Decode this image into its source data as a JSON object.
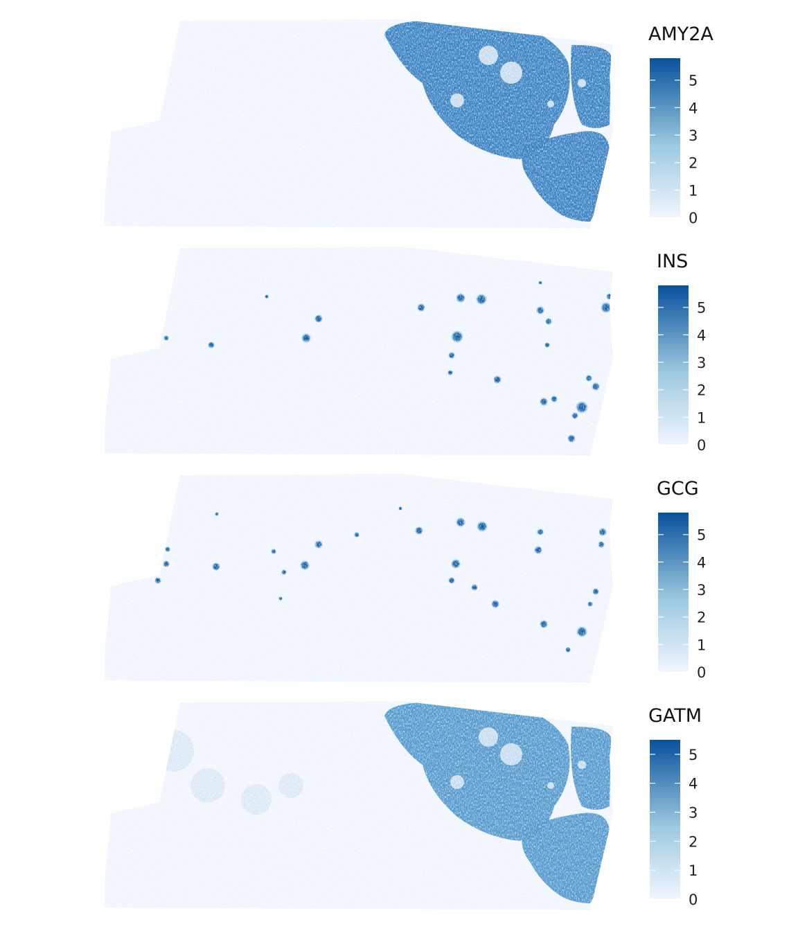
{
  "chart_data": [
    {
      "type": "heatmap",
      "gene": "AMY2A",
      "legend": {
        "title": "AMY2A",
        "ticks": [
          "0",
          "1",
          "2",
          "3",
          "4",
          "5"
        ],
        "range": [
          0,
          5.8
        ]
      },
      "pattern": "acinar",
      "colors": {
        "low": "#f0f5fd",
        "mid": "#9ecae1",
        "high": "#08519c"
      }
    },
    {
      "type": "heatmap",
      "gene": "INS",
      "legend": {
        "title": "INS",
        "ticks": [
          "0",
          "1",
          "2",
          "3",
          "4",
          "5"
        ],
        "range": [
          0,
          5.8
        ]
      },
      "pattern": "islets",
      "colors": {
        "low": "#f0f5fd",
        "mid": "#9ecae1",
        "high": "#08519c"
      }
    },
    {
      "type": "heatmap",
      "gene": "GCG",
      "legend": {
        "title": "GCG",
        "ticks": [
          "0",
          "1",
          "2",
          "3",
          "4",
          "5"
        ],
        "range": [
          0,
          5.8
        ]
      },
      "pattern": "islets",
      "colors": {
        "low": "#f0f5fd",
        "mid": "#9ecae1",
        "high": "#08519c"
      }
    },
    {
      "type": "heatmap",
      "gene": "GATM",
      "legend": {
        "title": "GATM",
        "ticks": [
          "0",
          "1",
          "2",
          "3",
          "4",
          "5"
        ],
        "range": [
          0,
          5.5
        ]
      },
      "pattern": "acinar-light",
      "colors": {
        "low": "#f0f5fd",
        "mid": "#9ecae1",
        "high": "#08519c"
      }
    }
  ]
}
